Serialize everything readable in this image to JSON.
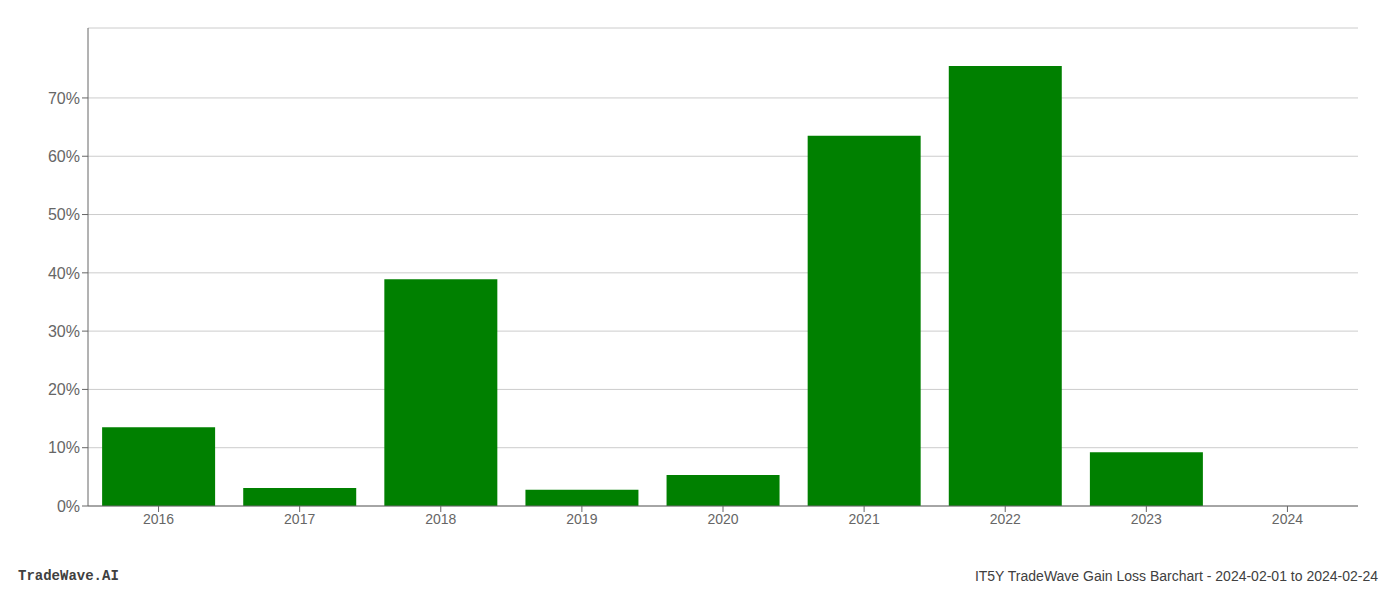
{
  "chart_data": {
    "type": "bar",
    "categories": [
      "2016",
      "2017",
      "2018",
      "2019",
      "2020",
      "2021",
      "2022",
      "2023",
      "2024"
    ],
    "values": [
      0.135,
      0.031,
      0.389,
      0.028,
      0.053,
      0.635,
      0.755,
      0.092,
      0.0
    ],
    "color": "#008000",
    "ylim": [
      0,
      0.82
    ],
    "yticks": [
      {
        "value": 0.0,
        "label": "0%"
      },
      {
        "value": 0.1,
        "label": "10%"
      },
      {
        "value": 0.2,
        "label": "20%"
      },
      {
        "value": 0.3,
        "label": "30%"
      },
      {
        "value": 0.4,
        "label": "40%"
      },
      {
        "value": 0.5,
        "label": "50%"
      },
      {
        "value": 0.6,
        "label": "60%"
      },
      {
        "value": 0.7,
        "label": "70%"
      }
    ],
    "grid": true,
    "annotations": [
      "TradeWave.AI",
      "IT5Y TradeWave Gain Loss Barchart - 2024-02-01 to 2024-02-24"
    ]
  }
}
